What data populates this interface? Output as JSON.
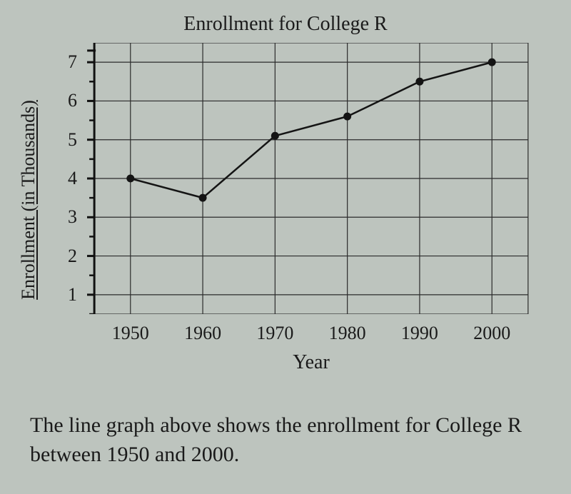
{
  "chart": {
    "type": "line",
    "title": "Enrollment for College R",
    "title_fontsize": 28,
    "xlabel": "Year",
    "ylabel": "Enrollment (in Thousands)",
    "label_fontsize": 26,
    "background_color": "#bdc4be",
    "grid_color": "#2b2b2b",
    "axis_color": "#111111",
    "line_color": "#141414",
    "marker_color": "#141414",
    "line_width": 2.5,
    "marker_radius": 5.5,
    "marker_style": "circle",
    "x_categories": [
      "1950",
      "1960",
      "1970",
      "1980",
      "1990",
      "2000"
    ],
    "y_ticks": [
      1,
      2,
      3,
      4,
      5,
      6,
      7
    ],
    "ylim": [
      0.5,
      7.5
    ],
    "xlim_index": [
      -0.6,
      5.6
    ],
    "data": [
      {
        "year": "1950",
        "value": 4.0
      },
      {
        "year": "1960",
        "value": 3.5
      },
      {
        "year": "1970",
        "value": 5.1
      },
      {
        "year": "1980",
        "value": 5.6
      },
      {
        "year": "1990",
        "value": 6.5
      },
      {
        "year": "2000",
        "value": 7.0
      }
    ]
  },
  "caption": "The line graph above shows the enrollment for College R between 1950 and 2000."
}
